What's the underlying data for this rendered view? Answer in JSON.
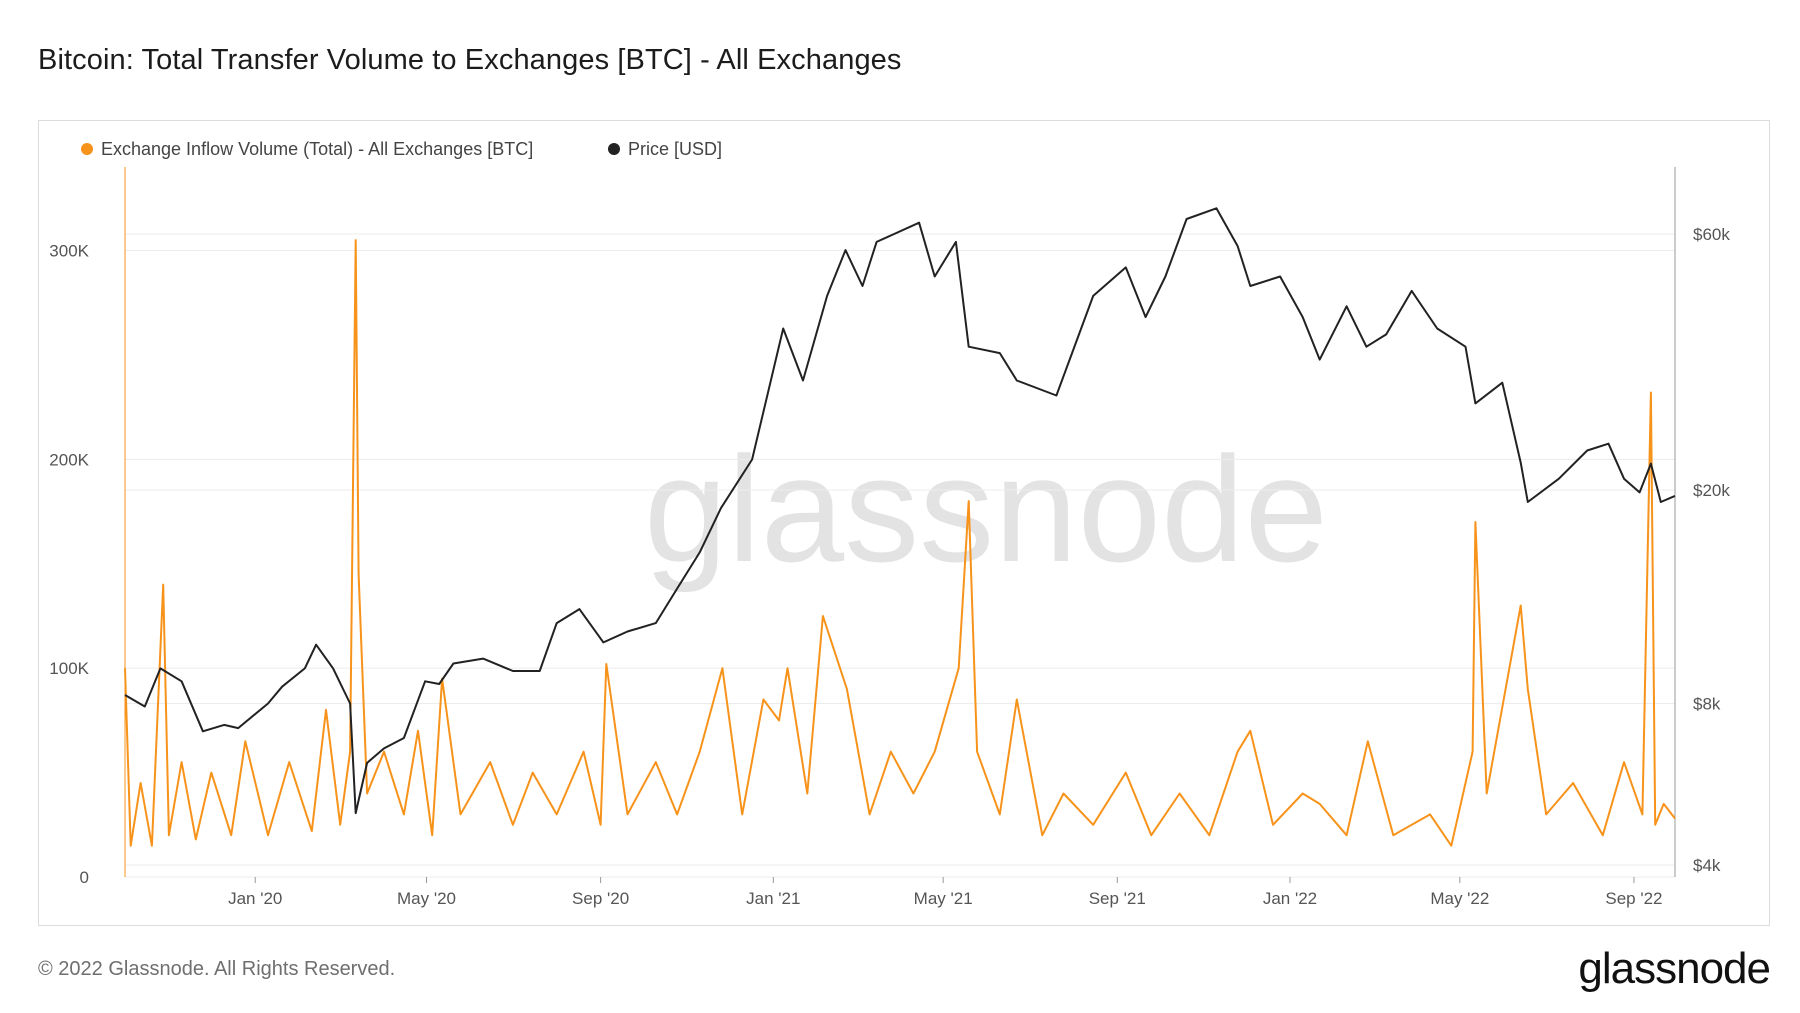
{
  "page": {
    "title": "Bitcoin: Total Transfer Volume to Exchanges [BTC] - All Exchanges",
    "footer": "© 2022 Glassnode. All Rights Reserved.",
    "logo": "glassnode",
    "watermark": "glassnode"
  },
  "chart_data": {
    "type": "line",
    "title": "Bitcoin: Total Transfer Volume to Exchanges [BTC] - All Exchanges",
    "legend_position": "top-left",
    "grid": true,
    "x_range": [
      "2019-10-01",
      "2022-09-30"
    ],
    "x_ticks": [
      {
        "label": "Jan '20",
        "date": "2020-01-01"
      },
      {
        "label": "May '20",
        "date": "2020-05-01"
      },
      {
        "label": "Sep '20",
        "date": "2020-09-01"
      },
      {
        "label": "Jan '21",
        "date": "2021-01-01"
      },
      {
        "label": "May '21",
        "date": "2021-05-01"
      },
      {
        "label": "Sep '21",
        "date": "2021-09-01"
      },
      {
        "label": "Jan '22",
        "date": "2022-01-01"
      },
      {
        "label": "May '22",
        "date": "2022-05-01"
      },
      {
        "label": "Sep '22",
        "date": "2022-09-01"
      }
    ],
    "y_left": {
      "scale": "linear",
      "range": [
        0,
        340000
      ],
      "ticks": [
        {
          "label": "0",
          "value": 0
        },
        {
          "label": "100K",
          "value": 100000
        },
        {
          "label": "200K",
          "value": 200000
        },
        {
          "label": "300K",
          "value": 300000
        }
      ]
    },
    "y_right": {
      "scale": "log",
      "range": [
        3800,
        80000
      ],
      "ticks": [
        {
          "label": "$4k",
          "value": 4000
        },
        {
          "label": "$8k",
          "value": 8000
        },
        {
          "label": "$20k",
          "value": 20000
        },
        {
          "label": "$60k",
          "value": 60000
        }
      ]
    },
    "series": [
      {
        "name": "Exchange Inflow Volume (Total) - All Exchanges [BTC]",
        "axis": "left",
        "color": "#f7931a",
        "points": [
          [
            "2019-10-01",
            100000
          ],
          [
            "2019-10-05",
            15000
          ],
          [
            "2019-10-12",
            45000
          ],
          [
            "2019-10-20",
            15000
          ],
          [
            "2019-10-28",
            140000
          ],
          [
            "2019-11-01",
            20000
          ],
          [
            "2019-11-10",
            55000
          ],
          [
            "2019-11-20",
            18000
          ],
          [
            "2019-12-01",
            50000
          ],
          [
            "2019-12-15",
            20000
          ],
          [
            "2019-12-25",
            65000
          ],
          [
            "2020-01-10",
            20000
          ],
          [
            "2020-01-25",
            55000
          ],
          [
            "2020-02-10",
            22000
          ],
          [
            "2020-02-20",
            80000
          ],
          [
            "2020-03-01",
            25000
          ],
          [
            "2020-03-08",
            60000
          ],
          [
            "2020-03-12",
            305000
          ],
          [
            "2020-03-14",
            145000
          ],
          [
            "2020-03-20",
            40000
          ],
          [
            "2020-04-01",
            60000
          ],
          [
            "2020-04-15",
            30000
          ],
          [
            "2020-04-25",
            70000
          ],
          [
            "2020-05-05",
            20000
          ],
          [
            "2020-05-12",
            95000
          ],
          [
            "2020-05-25",
            30000
          ],
          [
            "2020-06-15",
            55000
          ],
          [
            "2020-07-01",
            25000
          ],
          [
            "2020-07-15",
            50000
          ],
          [
            "2020-08-01",
            30000
          ],
          [
            "2020-08-20",
            60000
          ],
          [
            "2020-09-01",
            25000
          ],
          [
            "2020-09-05",
            102000
          ],
          [
            "2020-09-20",
            30000
          ],
          [
            "2020-10-10",
            55000
          ],
          [
            "2020-10-25",
            30000
          ],
          [
            "2020-11-10",
            60000
          ],
          [
            "2020-11-26",
            100000
          ],
          [
            "2020-12-10",
            30000
          ],
          [
            "2020-12-25",
            85000
          ],
          [
            "2021-01-05",
            75000
          ],
          [
            "2021-01-11",
            100000
          ],
          [
            "2021-01-25",
            40000
          ],
          [
            "2021-02-05",
            125000
          ],
          [
            "2021-02-22",
            90000
          ],
          [
            "2021-03-10",
            30000
          ],
          [
            "2021-03-25",
            60000
          ],
          [
            "2021-04-10",
            40000
          ],
          [
            "2021-04-25",
            60000
          ],
          [
            "2021-05-12",
            100000
          ],
          [
            "2021-05-19",
            180000
          ],
          [
            "2021-05-25",
            60000
          ],
          [
            "2021-06-10",
            30000
          ],
          [
            "2021-06-22",
            85000
          ],
          [
            "2021-07-10",
            20000
          ],
          [
            "2021-07-25",
            40000
          ],
          [
            "2021-08-15",
            25000
          ],
          [
            "2021-09-07",
            50000
          ],
          [
            "2021-09-25",
            20000
          ],
          [
            "2021-10-15",
            40000
          ],
          [
            "2021-11-05",
            20000
          ],
          [
            "2021-11-25",
            60000
          ],
          [
            "2021-12-04",
            70000
          ],
          [
            "2021-12-20",
            25000
          ],
          [
            "2022-01-10",
            40000
          ],
          [
            "2022-01-22",
            35000
          ],
          [
            "2022-02-10",
            20000
          ],
          [
            "2022-02-25",
            65000
          ],
          [
            "2022-03-15",
            20000
          ],
          [
            "2022-04-10",
            30000
          ],
          [
            "2022-04-25",
            15000
          ],
          [
            "2022-05-10",
            60000
          ],
          [
            "2022-05-12",
            170000
          ],
          [
            "2022-05-20",
            40000
          ],
          [
            "2022-06-13",
            130000
          ],
          [
            "2022-06-18",
            90000
          ],
          [
            "2022-07-01",
            30000
          ],
          [
            "2022-07-20",
            45000
          ],
          [
            "2022-08-10",
            20000
          ],
          [
            "2022-08-25",
            55000
          ],
          [
            "2022-09-07",
            30000
          ],
          [
            "2022-09-13",
            232000
          ],
          [
            "2022-09-16",
            25000
          ],
          [
            "2022-09-22",
            35000
          ],
          [
            "2022-09-30",
            28000
          ]
        ]
      },
      {
        "name": "Price [USD]",
        "axis": "right",
        "color": "#222222",
        "points": [
          [
            "2019-10-01",
            8300
          ],
          [
            "2019-10-15",
            7900
          ],
          [
            "2019-10-26",
            9300
          ],
          [
            "2019-11-10",
            8800
          ],
          [
            "2019-11-25",
            7100
          ],
          [
            "2019-12-10",
            7300
          ],
          [
            "2019-12-20",
            7200
          ],
          [
            "2020-01-10",
            8000
          ],
          [
            "2020-01-20",
            8600
          ],
          [
            "2020-02-05",
            9300
          ],
          [
            "2020-02-13",
            10300
          ],
          [
            "2020-02-25",
            9300
          ],
          [
            "2020-03-08",
            8000
          ],
          [
            "2020-03-12",
            5000
          ],
          [
            "2020-03-20",
            6200
          ],
          [
            "2020-04-01",
            6600
          ],
          [
            "2020-04-15",
            6900
          ],
          [
            "2020-04-30",
            8800
          ],
          [
            "2020-05-10",
            8700
          ],
          [
            "2020-05-20",
            9500
          ],
          [
            "2020-06-10",
            9700
          ],
          [
            "2020-07-01",
            9200
          ],
          [
            "2020-07-20",
            9200
          ],
          [
            "2020-08-01",
            11300
          ],
          [
            "2020-08-17",
            12000
          ],
          [
            "2020-09-03",
            10400
          ],
          [
            "2020-09-20",
            10900
          ],
          [
            "2020-10-10",
            11300
          ],
          [
            "2020-10-25",
            13100
          ],
          [
            "2020-11-10",
            15300
          ],
          [
            "2020-11-25",
            18500
          ],
          [
            "2020-12-17",
            22800
          ],
          [
            "2021-01-08",
            40000
          ],
          [
            "2021-01-22",
            32000
          ],
          [
            "2021-02-08",
            46000
          ],
          [
            "2021-02-21",
            56000
          ],
          [
            "2021-03-05",
            48000
          ],
          [
            "2021-03-15",
            58000
          ],
          [
            "2021-04-14",
            63000
          ],
          [
            "2021-04-25",
            50000
          ],
          [
            "2021-05-10",
            58000
          ],
          [
            "2021-05-19",
            37000
          ],
          [
            "2021-06-10",
            36000
          ],
          [
            "2021-06-22",
            32000
          ],
          [
            "2021-07-20",
            30000
          ],
          [
            "2021-08-15",
            46000
          ],
          [
            "2021-09-07",
            52000
          ],
          [
            "2021-09-21",
            42000
          ],
          [
            "2021-10-05",
            50000
          ],
          [
            "2021-10-20",
            64000
          ],
          [
            "2021-11-10",
            67000
          ],
          [
            "2021-11-25",
            57000
          ],
          [
            "2021-12-04",
            48000
          ],
          [
            "2021-12-25",
            50000
          ],
          [
            "2022-01-10",
            42000
          ],
          [
            "2022-01-22",
            35000
          ],
          [
            "2022-02-10",
            44000
          ],
          [
            "2022-02-24",
            37000
          ],
          [
            "2022-03-10",
            39000
          ],
          [
            "2022-03-28",
            47000
          ],
          [
            "2022-04-15",
            40000
          ],
          [
            "2022-05-05",
            37000
          ],
          [
            "2022-05-12",
            29000
          ],
          [
            "2022-05-31",
            31700
          ],
          [
            "2022-06-13",
            22500
          ],
          [
            "2022-06-18",
            19000
          ],
          [
            "2022-07-10",
            21000
          ],
          [
            "2022-07-30",
            23700
          ],
          [
            "2022-08-14",
            24400
          ],
          [
            "2022-08-25",
            21000
          ],
          [
            "2022-09-05",
            19800
          ],
          [
            "2022-09-13",
            22400
          ],
          [
            "2022-09-20",
            19000
          ],
          [
            "2022-09-30",
            19500
          ]
        ]
      }
    ]
  }
}
